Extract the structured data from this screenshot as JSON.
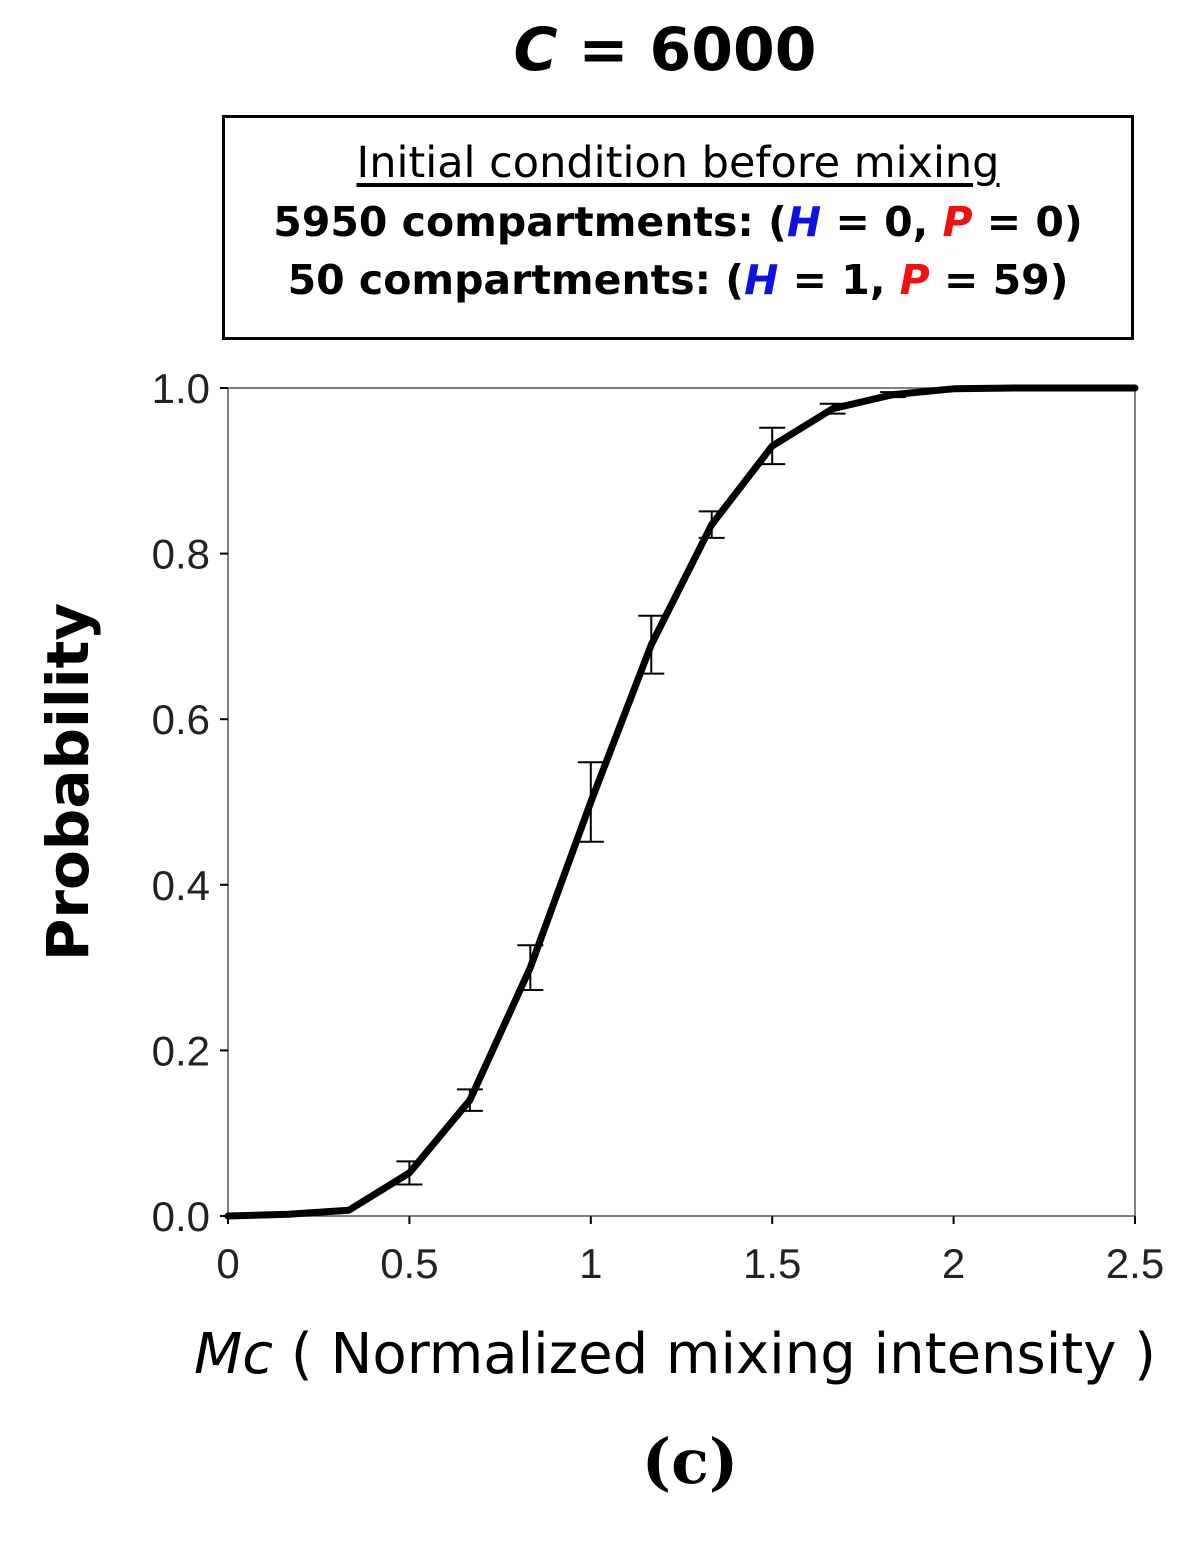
{
  "title": {
    "variable": "C",
    "text": " = 6000"
  },
  "condition_box": {
    "heading": "Initial condition before mixing",
    "rows": [
      {
        "count_label": "5950 compartments: (",
        "h_symbol": "H",
        "h_value": " = 0, ",
        "p_symbol": "P",
        "p_value": " = 0)"
      },
      {
        "count_label": "50 compartments: (",
        "h_symbol": "H",
        "h_value": " = 1, ",
        "p_symbol": "P",
        "p_value": " = 59)"
      }
    ]
  },
  "panel_label": "(c)",
  "colors": {
    "h_symbol": "#1010e0",
    "p_symbol": "#f01010",
    "line": "#000000"
  },
  "chart_data": {
    "type": "line",
    "title": "C = 6000",
    "xlabel": "Mc ( Normalized mixing intensity )",
    "xlabel_variable": "Mc",
    "xlabel_text": " ( Normalized mixing intensity )",
    "ylabel": "Probability",
    "xlim": [
      0,
      2.5
    ],
    "ylim": [
      0,
      1.0
    ],
    "xticks": [
      0,
      0.5,
      1,
      1.5,
      2,
      2.5
    ],
    "xtick_labels": [
      "0",
      "0.5",
      "1",
      "1.5",
      "2",
      "2.5"
    ],
    "yticks": [
      0,
      0.2,
      0.4,
      0.6,
      0.8,
      1.0
    ],
    "ytick_labels": [
      "0.0",
      "0.2",
      "0.4",
      "0.6",
      "0.8",
      "1.0"
    ],
    "grid": false,
    "series": [
      {
        "name": "Probability",
        "x": [
          0,
          0.1667,
          0.3333,
          0.5,
          0.6667,
          0.8333,
          1.0,
          1.1667,
          1.3333,
          1.5,
          1.6667,
          1.8333,
          2.0,
          2.1667,
          2.3333,
          2.5
        ],
        "y": [
          0.0,
          0.002,
          0.007,
          0.052,
          0.14,
          0.3,
          0.5,
          0.69,
          0.835,
          0.93,
          0.975,
          0.992,
          0.999,
          1.0,
          1.0,
          1.0
        ],
        "error": [
          0,
          0,
          0,
          0.014,
          0.013,
          0.027,
          0.048,
          0.035,
          0.016,
          0.022,
          0.006,
          0.003,
          0,
          0,
          0,
          0
        ]
      }
    ]
  }
}
